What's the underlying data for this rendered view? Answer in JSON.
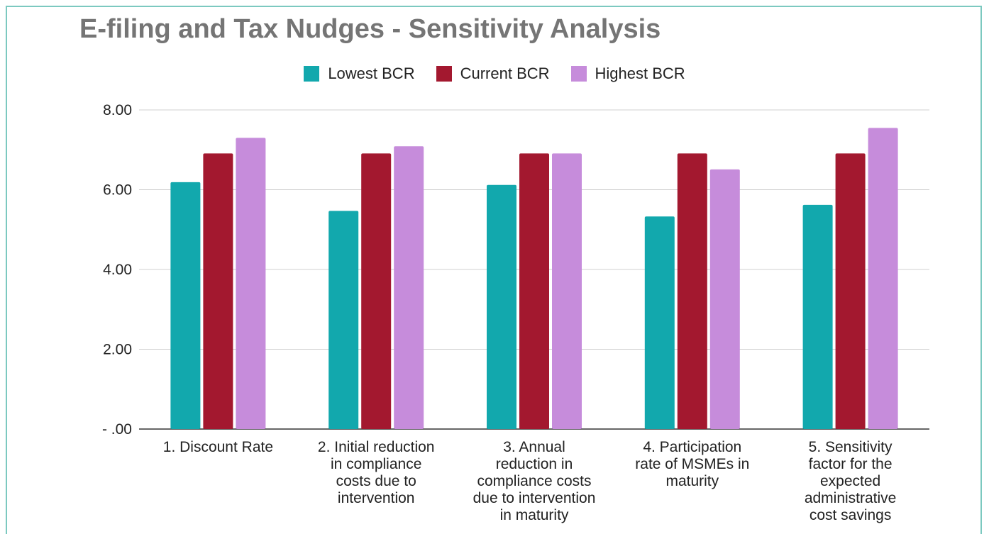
{
  "chart_data": {
    "type": "bar",
    "title": "E-filing and Tax Nudges - Sensitivity Analysis",
    "categories": [
      [
        "1. Discount Rate"
      ],
      [
        "2. Initial reduction",
        "in compliance",
        "costs due to",
        "intervention"
      ],
      [
        "3. Annual",
        "reduction in",
        "compliance costs",
        "due to intervention",
        "in maturity"
      ],
      [
        "4. Participation",
        "rate of MSMEs in",
        "maturity"
      ],
      [
        "5. Sensitivity",
        "factor for the",
        "expected",
        "administrative",
        "cost savings"
      ]
    ],
    "series": [
      {
        "name": "Lowest BCR",
        "color": "#12a8ad",
        "values": [
          6.19,
          5.47,
          6.12,
          5.33,
          5.62
        ]
      },
      {
        "name": "Current BCR",
        "color": "#a3182f",
        "values": [
          6.91,
          6.91,
          6.91,
          6.91,
          6.91
        ]
      },
      {
        "name": "Highest BCR",
        "color": "#c68cdb",
        "values": [
          7.3,
          7.09,
          6.91,
          6.51,
          7.55
        ]
      }
    ],
    "yticks": [
      "- .00",
      "2.00",
      "4.00",
      "6.00",
      "8.00"
    ],
    "ylim": [
      0,
      8
    ],
    "grid": true,
    "legend_position": "top"
  }
}
